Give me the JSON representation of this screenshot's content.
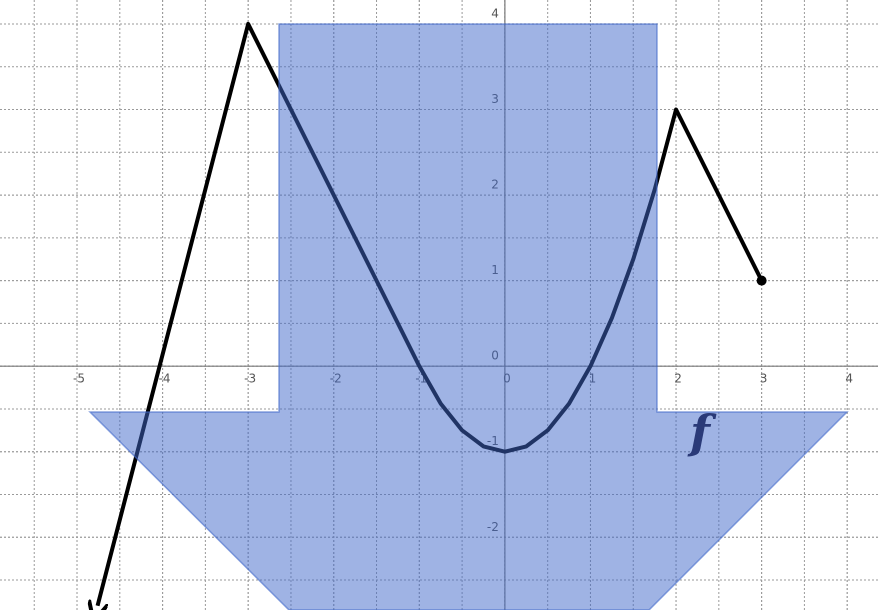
{
  "chart_data": {
    "type": "line",
    "annotation": "f",
    "xlim": [
      -5.9,
      4.36
    ],
    "ylim": [
      -2.85,
      4.28
    ],
    "xticks": [
      -5,
      -4,
      -3,
      -2,
      -1,
      0,
      1,
      2,
      3,
      4
    ],
    "yticks": [
      -2,
      -1,
      0,
      1,
      2,
      3,
      4
    ],
    "grid": true,
    "grid_step": 0.5,
    "series": [
      {
        "color": "#000000",
        "start_marker": "arrow",
        "end_marker": "dot",
        "x": [
          -4.76,
          -3,
          -1,
          -0.75,
          -0.5,
          -0.25,
          0,
          0.25,
          0.5,
          0.75,
          1,
          1.25,
          1.5,
          1.75,
          2,
          3
        ],
        "values": [
          -2.8,
          4,
          0,
          -0.4375,
          -0.75,
          -0.9375,
          -1,
          -0.9375,
          -0.75,
          -0.4375,
          0,
          0.5625,
          1.25,
          2.0625,
          3,
          1
        ]
      }
    ]
  }
}
